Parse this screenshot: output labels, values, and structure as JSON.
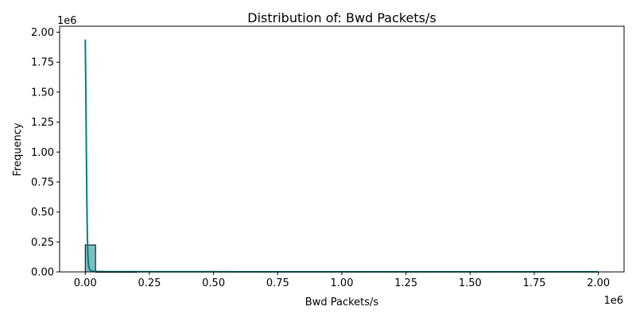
{
  "chart_data": {
    "type": "histogram",
    "title": "Distribution of: Bwd Packets/s",
    "xlabel": "Bwd Packets/s",
    "ylabel": "Frequency",
    "x_offset_label": "1e6",
    "y_offset_label": "1e6",
    "xlim": [
      -0.1,
      2.1
    ],
    "ylim": [
      0,
      2.05
    ],
    "x_ticks": [
      {
        "value": 0.0,
        "label": "0.00"
      },
      {
        "value": 0.25,
        "label": "0.25"
      },
      {
        "value": 0.5,
        "label": "0.50"
      },
      {
        "value": 0.75,
        "label": "0.75"
      },
      {
        "value": 1.0,
        "label": "1.00"
      },
      {
        "value": 1.25,
        "label": "1.25"
      },
      {
        "value": 1.5,
        "label": "1.50"
      },
      {
        "value": 1.75,
        "label": "1.75"
      },
      {
        "value": 2.0,
        "label": "2.00"
      }
    ],
    "y_ticks": [
      {
        "value": 0.0,
        "label": "0.00"
      },
      {
        "value": 0.25,
        "label": "0.25"
      },
      {
        "value": 0.5,
        "label": "0.50"
      },
      {
        "value": 0.75,
        "label": "0.75"
      },
      {
        "value": 1.0,
        "label": "1.00"
      },
      {
        "value": 1.25,
        "label": "1.25"
      },
      {
        "value": 1.5,
        "label": "1.50"
      },
      {
        "value": 1.75,
        "label": "1.75"
      },
      {
        "value": 2.0,
        "label": "2.00"
      }
    ],
    "bins": [
      {
        "start": 0.0,
        "end": 0.04,
        "count": 0.225
      },
      {
        "start": 0.04,
        "end": 0.08,
        "count": 0.0006
      },
      {
        "start": 0.08,
        "end": 0.12,
        "count": 0.0003
      },
      {
        "start": 0.12,
        "end": 0.16,
        "count": 0.0002
      },
      {
        "start": 0.16,
        "end": 0.2,
        "count": 0.0001
      }
    ],
    "kde": {
      "x": [
        0.0,
        0.002,
        0.004,
        0.006,
        0.008,
        0.01,
        0.012,
        0.015,
        0.02,
        0.03,
        0.05,
        0.1,
        0.3,
        0.6,
        1.0,
        1.4,
        1.8,
        2.0
      ],
      "y": [
        1.94,
        1.55,
        1.05,
        0.62,
        0.32,
        0.15,
        0.07,
        0.03,
        0.012,
        0.005,
        0.003,
        0.002,
        0.0015,
        0.001,
        0.001,
        0.001,
        0.001,
        0.001
      ]
    },
    "colors": {
      "bar_fill": "#7fbfbf",
      "bar_edge": "#000000",
      "kde_line": "#008080"
    }
  }
}
